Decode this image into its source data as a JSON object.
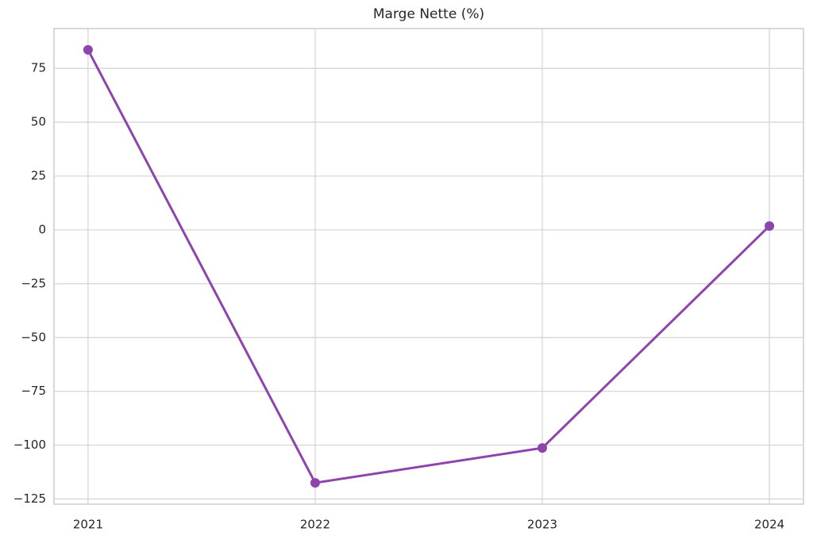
{
  "chart_data": {
    "type": "line",
    "title": "Marge Nette (%)",
    "x": [
      2021,
      2022,
      2023,
      2024
    ],
    "values": [
      83.6,
      -117.5,
      -101.3,
      1.8
    ],
    "color": "#8e44ad",
    "xlim": [
      2020.85,
      2024.15
    ],
    "xticks": [
      2021,
      2022,
      2023,
      2024
    ],
    "ylim": [
      -127.4,
      93.5
    ],
    "yticks": [
      {
        "value": -125,
        "label": "−125"
      },
      {
        "value": -100,
        "label": "−100"
      },
      {
        "value": -75,
        "label": "−75"
      },
      {
        "value": -50,
        "label": "−50"
      },
      {
        "value": -25,
        "label": "−25"
      },
      0,
      25,
      50,
      75
    ],
    "grid": true
  }
}
